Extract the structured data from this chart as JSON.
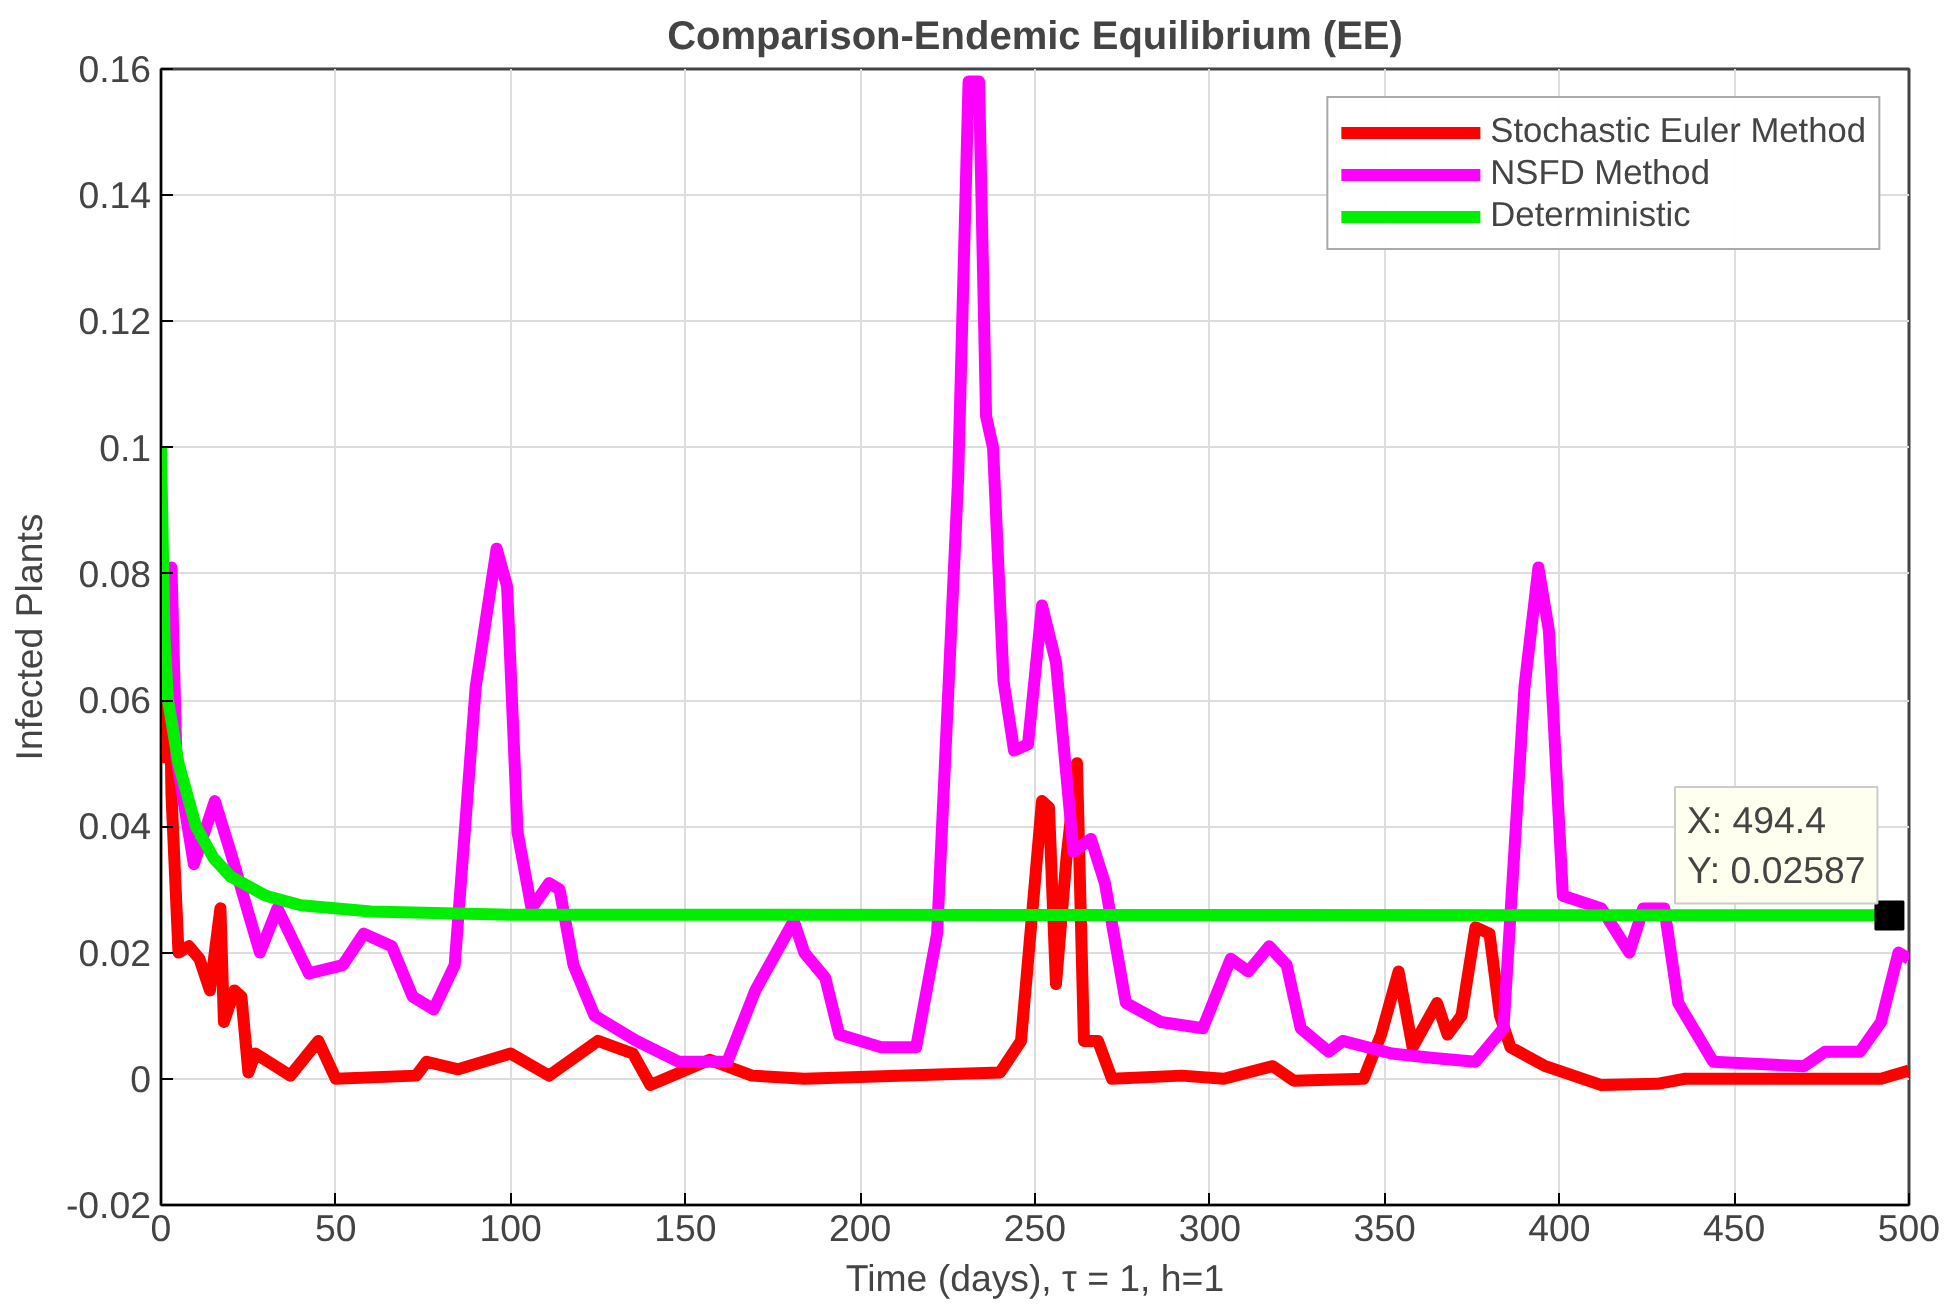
{
  "chart_data": {
    "type": "line",
    "title": "Comparison-Endemic Equilibrium (EE)",
    "xlabel": "Time (days), τ = 1, h=1",
    "ylabel": "Infected Plants",
    "xlim": [
      0,
      500
    ],
    "ylim": [
      -0.02,
      0.16
    ],
    "xticks": [
      0,
      50,
      100,
      150,
      200,
      250,
      300,
      350,
      400,
      450,
      500
    ],
    "yticks": [
      -0.02,
      0,
      0.02,
      0.04,
      0.06,
      0.08,
      0.1,
      0.12,
      0.14,
      0.16
    ],
    "grid": true,
    "legend": "top right",
    "line_style": "solid",
    "series": [
      {
        "name": "Stochastic Euler Method",
        "color": "#ff0000",
        "x": [
          1,
          2,
          3,
          5,
          8,
          11,
          14,
          17,
          18,
          21,
          23,
          25,
          27,
          37,
          45,
          50,
          73,
          76,
          85,
          100,
          111,
          125,
          135,
          140,
          157,
          169,
          184,
          240,
          246,
          252,
          254,
          256,
          259,
          262,
          264,
          268,
          272,
          292,
          304,
          318,
          324,
          344,
          349,
          354,
          358,
          365,
          368,
          372,
          376,
          380,
          383,
          386,
          396,
          412,
          428,
          436,
          492,
          500
        ],
        "values": [
          0.05,
          0.08,
          0.045,
          0.02,
          0.021,
          0.019,
          0.014,
          0.027,
          0.009,
          0.014,
          0.013,
          0.001,
          0.004,
          0.0005,
          0.006,
          0,
          0.0005,
          0.0027,
          0.0015,
          0.004,
          0.0005,
          0.006,
          0.004,
          -0.001,
          0.003,
          0.0005,
          0,
          0.001,
          0.006,
          0.044,
          0.043,
          0.015,
          0.035,
          0.05,
          0.006,
          0.006,
          0,
          0.0005,
          0,
          0.002,
          -0.0003,
          0,
          0.007,
          0.017,
          0.005,
          0.012,
          0.007,
          0.01,
          0.024,
          0.023,
          0.01,
          0.005,
          0.002,
          -0.001,
          -0.0008,
          0,
          0,
          0.0013
        ]
      },
      {
        "name": "NSFD Method",
        "color": "#ff00ff",
        "x": [
          1,
          3,
          4.4,
          9.4,
          15.4,
          20.4,
          28.3,
          33.3,
          42.3,
          52,
          58,
          66,
          72,
          78,
          84,
          90,
          96,
          99,
          102,
          106,
          111,
          114,
          118,
          124,
          136,
          148,
          162,
          170,
          174,
          181,
          184,
          190,
          194,
          206,
          216,
          222,
          228,
          231,
          234,
          236,
          238,
          241,
          244,
          248,
          252,
          256,
          261,
          266,
          270,
          276,
          286,
          298,
          306,
          311,
          317,
          322,
          326,
          334,
          338,
          352,
          364,
          376,
          384,
          390,
          394,
          397,
          401,
          412,
          420,
          424,
          430,
          434,
          444,
          470,
          476,
          486,
          492,
          497,
          500
        ],
        "values": [
          0.08,
          0.081,
          0.051,
          0.034,
          0.044,
          0.035,
          0.02,
          0.027,
          0.0167,
          0.018,
          0.023,
          0.021,
          0.013,
          0.011,
          0.018,
          0.062,
          0.084,
          0.078,
          0.039,
          0.027,
          0.031,
          0.03,
          0.018,
          0.01,
          0.006,
          0.0027,
          0.0027,
          0.014,
          0.018,
          0.025,
          0.02,
          0.016,
          0.007,
          0.005,
          0.005,
          0.023,
          0.095,
          0.158,
          0.158,
          0.105,
          0.1,
          0.063,
          0.052,
          0.053,
          0.075,
          0.066,
          0.036,
          0.038,
          0.031,
          0.012,
          0.009,
          0.008,
          0.019,
          0.017,
          0.021,
          0.018,
          0.008,
          0.0043,
          0.006,
          0.004,
          0.0033,
          0.0027,
          0.008,
          0.062,
          0.081,
          0.071,
          0.029,
          0.027,
          0.02,
          0.027,
          0.027,
          0.012,
          0.0027,
          0.002,
          0.0043,
          0.0043,
          0.009,
          0.02,
          0.019
        ]
      },
      {
        "name": "Deterministic",
        "color": "#00ee00",
        "x": [
          0,
          1,
          2,
          5,
          10,
          15,
          20,
          30,
          40,
          60,
          100,
          494.4
        ],
        "values": [
          0.1,
          0.07,
          0.06,
          0.05,
          0.04,
          0.035,
          0.032,
          0.029,
          0.0275,
          0.0265,
          0.026,
          0.0259
        ]
      }
    ],
    "annotations": [
      {
        "text": "X: 494.4\nY: 0.02587",
        "x": 494.4,
        "y": 0.02587
      }
    ]
  }
}
